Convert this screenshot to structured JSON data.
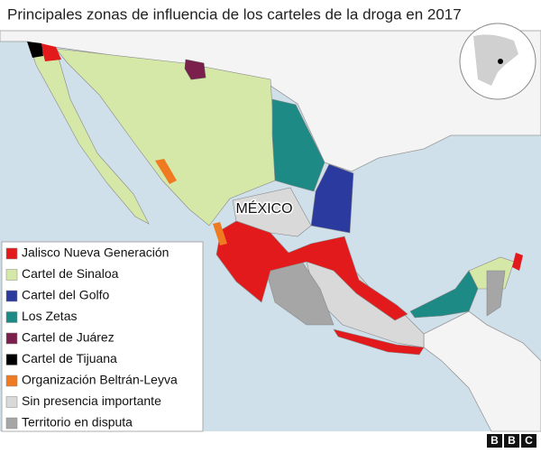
{
  "title": "Principales zonas de influencia de los carteles de la droga en 2017",
  "map_label": "MÉXICO",
  "legend": [
    {
      "label": "Jalisco Nueva Generación",
      "color": "#e31a1c"
    },
    {
      "label": "Cartel de Sinaloa",
      "color": "#d6e8a8"
    },
    {
      "label": "Cartel del Golfo",
      "color": "#2b3a9e"
    },
    {
      "label": "Los Zetas",
      "color": "#1d8a85"
    },
    {
      "label": "Cartel de Juárez",
      "color": "#7b1f4c"
    },
    {
      "label": "Cartel de Tijuana",
      "color": "#000000"
    },
    {
      "label": "Organización Beltrán-Leyva",
      "color": "#f07a22"
    },
    {
      "label": "Sin presencia importante",
      "color": "#d9d9d9"
    },
    {
      "label": "Territorio en disputa",
      "color": "#a6a6a6"
    }
  ],
  "logo": [
    "B",
    "B",
    "C"
  ]
}
